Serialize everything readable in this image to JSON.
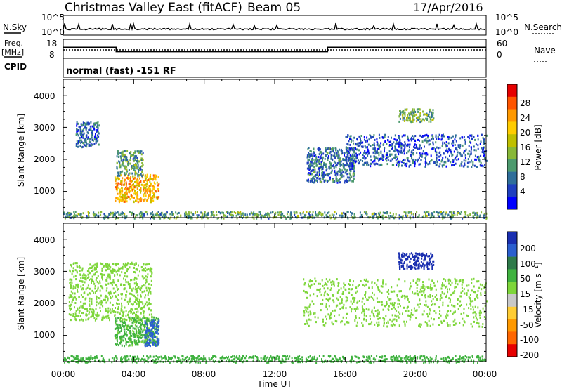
{
  "header": {
    "station": "Christmas Valley East (fitACF)",
    "beam": "Beam 05",
    "date": "17/Apr/2016"
  },
  "noise_panel": {
    "left_label": "N.Sky",
    "right_label": "N.Search",
    "ticks_left": [
      "10^5",
      "10^0"
    ],
    "ticks_right": [
      "10^5",
      "10^0"
    ]
  },
  "freq_panel": {
    "left_label_1": "Freq.",
    "left_label_2": "[MHz]",
    "cpid_label": "CPID",
    "right_label": "Nave",
    "ticks_left": [
      "18",
      "8"
    ],
    "ticks_right": [
      "60",
      "0"
    ],
    "cpid_text": "normal (fast) -151 RF"
  },
  "axes": {
    "x_label": "Time UT",
    "x_ticks": [
      "00:00",
      "04:00",
      "08:00",
      "12:00",
      "16:00",
      "20:00",
      "00:00"
    ],
    "y_label": "Slant Range [km]",
    "y_ticks": [
      "4000",
      "3000",
      "2000",
      "1000"
    ]
  },
  "colorbars": {
    "power": {
      "label": "Power [dB]",
      "ticks": [
        "28",
        "24",
        "20",
        "16",
        "12",
        "8",
        "4"
      ],
      "colors": [
        "#e60000",
        "#ff5500",
        "#ff9900",
        "#ffcc00",
        "#bfbf00",
        "#88b838",
        "#4d9a6e",
        "#2f6e9a",
        "#1f3fbf",
        "#0000ff"
      ]
    },
    "velocity": {
      "label": "Velocity [m s⁻¹]",
      "ticks": [
        "200",
        "100",
        "50",
        "15",
        "-15",
        "-50",
        "-100",
        "-200"
      ],
      "colors": [
        "#1a2fb0",
        "#2b5fcf",
        "#2f7a4a",
        "#3fb23f",
        "#7ed63a",
        "#c8c8c8",
        "#ffcc33",
        "#ff9900",
        "#ff6600",
        "#e60000"
      ]
    }
  },
  "chart_data": [
    {
      "type": "line",
      "title": "N.Sky / N.Search",
      "x_range_hours": [
        0,
        24
      ],
      "series": [
        {
          "name": "N.Sky",
          "note": "near constant low level with small spikes"
        }
      ]
    },
    {
      "type": "line",
      "title": "Freq. / Nave",
      "x_range_hours": [
        0,
        24
      ],
      "series": [
        {
          "name": "Freq.",
          "x": [
            0,
            3,
            3,
            15,
            15,
            24
          ],
          "values": [
            14.5,
            14.5,
            11,
            11,
            14.5,
            14.5
          ]
        },
        {
          "name": "Nave",
          "x": [
            0,
            24
          ],
          "values": [
            20,
            20
          ]
        }
      ]
    },
    {
      "type": "heatmap",
      "title": "Power [dB]",
      "x_range_hours": [
        0,
        24
      ],
      "ylim": [
        180,
        4500
      ],
      "clusters": [
        {
          "t0": 2.9,
          "t1": 5.4,
          "r0": 700,
          "r1": 1550,
          "value_dB": 22
        },
        {
          "t0": 3.0,
          "t1": 4.5,
          "r0": 1500,
          "r1": 2300,
          "value_dB": 12
        },
        {
          "t0": 0.7,
          "t1": 2.0,
          "r0": 2400,
          "r1": 3200,
          "value_dB": 8
        },
        {
          "t0": 13.8,
          "t1": 16.5,
          "r0": 1300,
          "r1": 2400,
          "value_dB": 9
        },
        {
          "t0": 16.0,
          "t1": 24.0,
          "r0": 1800,
          "r1": 2800,
          "value_dB": 7
        },
        {
          "t0": 19.0,
          "t1": 21.0,
          "r0": 3200,
          "r1": 3600,
          "value_dB": 14
        },
        {
          "t0": 0.0,
          "t1": 24.0,
          "r0": 180,
          "r1": 400,
          "value_dB": 12
        }
      ]
    },
    {
      "type": "heatmap",
      "title": "Velocity [m s-1]",
      "x_range_hours": [
        0,
        24
      ],
      "ylim": [
        180,
        4500
      ],
      "clusters": [
        {
          "t0": 2.9,
          "t1": 5.4,
          "r0": 700,
          "r1": 1600,
          "value": 25
        },
        {
          "t0": 4.6,
          "t1": 5.4,
          "r0": 700,
          "r1": 1500,
          "value": 180
        },
        {
          "t0": 0.3,
          "t1": 5.0,
          "r0": 1500,
          "r1": 3300,
          "value": 0
        },
        {
          "t0": 13.5,
          "t1": 24.0,
          "r0": 1300,
          "r1": 2800,
          "value": 0
        },
        {
          "t0": 19.0,
          "t1": 21.0,
          "r0": 3100,
          "r1": 3600,
          "value": 220
        },
        {
          "t0": 0.0,
          "t1": 24.0,
          "r0": 180,
          "r1": 400,
          "value": 30
        }
      ]
    }
  ]
}
